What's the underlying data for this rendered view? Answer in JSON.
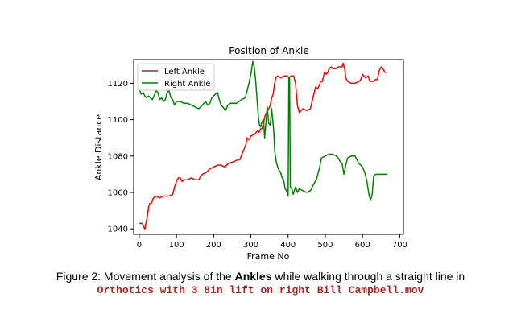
{
  "chart_data": {
    "type": "line",
    "title": "Position of Ankle",
    "xlabel": "Frame No",
    "ylabel": "Ankle Distance",
    "xlim": [
      -15,
      710
    ],
    "ylim": [
      1037,
      1133
    ],
    "xticks": [
      0,
      100,
      200,
      300,
      400,
      500,
      600,
      700
    ],
    "yticks": [
      1040,
      1060,
      1080,
      1100,
      1120
    ],
    "grid": false,
    "legend_position": "top-left",
    "series": [
      {
        "name": "Left Ankle",
        "color": "#ff0000",
        "points": [
          [
            0,
            1043
          ],
          [
            8,
            1043
          ],
          [
            12,
            1041
          ],
          [
            15,
            1040
          ],
          [
            18,
            1043
          ],
          [
            22,
            1047
          ],
          [
            25,
            1052
          ],
          [
            28,
            1054
          ],
          [
            32,
            1054
          ],
          [
            38,
            1057
          ],
          [
            45,
            1058
          ],
          [
            55,
            1057
          ],
          [
            65,
            1058
          ],
          [
            80,
            1058
          ],
          [
            90,
            1059
          ],
          [
            95,
            1063
          ],
          [
            100,
            1066
          ],
          [
            105,
            1068
          ],
          [
            110,
            1068
          ],
          [
            115,
            1066
          ],
          [
            120,
            1067
          ],
          [
            130,
            1067
          ],
          [
            140,
            1068
          ],
          [
            150,
            1067
          ],
          [
            160,
            1067
          ],
          [
            165,
            1069
          ],
          [
            170,
            1070
          ],
          [
            180,
            1071
          ],
          [
            190,
            1073
          ],
          [
            200,
            1074
          ],
          [
            210,
            1075
          ],
          [
            220,
            1075
          ],
          [
            230,
            1074
          ],
          [
            240,
            1076
          ],
          [
            255,
            1077
          ],
          [
            265,
            1078
          ],
          [
            270,
            1078
          ],
          [
            278,
            1082
          ],
          [
            282,
            1084
          ],
          [
            286,
            1086
          ],
          [
            290,
            1090
          ],
          [
            295,
            1089
          ],
          [
            300,
            1091
          ],
          [
            310,
            1092
          ],
          [
            318,
            1094
          ],
          [
            322,
            1093
          ],
          [
            326,
            1095
          ],
          [
            330,
            1095
          ],
          [
            335,
            1099
          ],
          [
            338,
            1102
          ],
          [
            342,
            1104
          ],
          [
            348,
            1106
          ],
          [
            352,
            1108
          ],
          [
            356,
            1112
          ],
          [
            360,
            1114
          ],
          [
            363,
            1119
          ],
          [
            367,
            1123
          ],
          [
            372,
            1124
          ],
          [
            380,
            1123
          ],
          [
            390,
            1124
          ],
          [
            398,
            1124
          ],
          [
            402,
            1123
          ],
          [
            408,
            1124
          ],
          [
            415,
            1124
          ],
          [
            420,
            1120
          ],
          [
            425,
            1108
          ],
          [
            430,
            1104
          ],
          [
            440,
            1106
          ],
          [
            450,
            1105
          ],
          [
            460,
            1106
          ],
          [
            468,
            1113
          ],
          [
            474,
            1118
          ],
          [
            480,
            1117
          ],
          [
            488,
            1121
          ],
          [
            492,
            1121
          ],
          [
            498,
            1126
          ],
          [
            503,
            1125
          ],
          [
            507,
            1126
          ],
          [
            510,
            1128
          ],
          [
            516,
            1129
          ],
          [
            520,
            1128
          ],
          [
            528,
            1128
          ],
          [
            535,
            1129
          ],
          [
            545,
            1129
          ],
          [
            548,
            1131
          ],
          [
            552,
            1128
          ],
          [
            555,
            1123
          ],
          [
            560,
            1121
          ],
          [
            570,
            1120
          ],
          [
            580,
            1120
          ],
          [
            590,
            1121
          ],
          [
            595,
            1122
          ],
          [
            600,
            1125
          ],
          [
            608,
            1123
          ],
          [
            615,
            1124
          ],
          [
            620,
            1121
          ],
          [
            628,
            1121
          ],
          [
            635,
            1122
          ],
          [
            640,
            1122
          ],
          [
            645,
            1127
          ],
          [
            650,
            1129
          ],
          [
            655,
            1128
          ],
          [
            660,
            1126
          ],
          [
            665,
            1126
          ]
        ]
      },
      {
        "name": "Right Ankle",
        "color": "#008000",
        "points": [
          [
            0,
            1117
          ],
          [
            5,
            1114
          ],
          [
            10,
            1115
          ],
          [
            15,
            1113
          ],
          [
            20,
            1112
          ],
          [
            25,
            1113
          ],
          [
            30,
            1112
          ],
          [
            35,
            1111
          ],
          [
            40,
            1113
          ],
          [
            45,
            1116
          ],
          [
            50,
            1115
          ],
          [
            55,
            1111
          ],
          [
            60,
            1112
          ],
          [
            65,
            1110
          ],
          [
            70,
            1111
          ],
          [
            75,
            1115
          ],
          [
            80,
            1116
          ],
          [
            85,
            1112
          ],
          [
            90,
            1111
          ],
          [
            95,
            1108
          ],
          [
            100,
            1110
          ],
          [
            110,
            1110
          ],
          [
            120,
            1109
          ],
          [
            130,
            1109
          ],
          [
            140,
            1108
          ],
          [
            150,
            1107
          ],
          [
            160,
            1106
          ],
          [
            170,
            1108
          ],
          [
            178,
            1110
          ],
          [
            184,
            1108
          ],
          [
            190,
            1109
          ],
          [
            195,
            1112
          ],
          [
            200,
            1113
          ],
          [
            205,
            1114
          ],
          [
            210,
            1115
          ],
          [
            215,
            1111
          ],
          [
            220,
            1108
          ],
          [
            225,
            1107
          ],
          [
            232,
            1105
          ],
          [
            238,
            1108
          ],
          [
            245,
            1109
          ],
          [
            255,
            1109
          ],
          [
            262,
            1109
          ],
          [
            268,
            1110
          ],
          [
            275,
            1111
          ],
          [
            285,
            1112
          ],
          [
            290,
            1116
          ],
          [
            295,
            1120
          ],
          [
            300,
            1125
          ],
          [
            305,
            1132
          ],
          [
            309,
            1129
          ],
          [
            313,
            1121
          ],
          [
            317,
            1110
          ],
          [
            320,
            1102
          ],
          [
            323,
            1097
          ],
          [
            326,
            1096
          ],
          [
            330,
            1099
          ],
          [
            334,
            1100
          ],
          [
            337,
            1090
          ],
          [
            340,
            1097
          ],
          [
            344,
            1107
          ],
          [
            348,
            1098
          ],
          [
            352,
            1097
          ],
          [
            356,
            1106
          ],
          [
            360,
            1097
          ],
          [
            362,
            1092
          ],
          [
            364,
            1083
          ],
          [
            368,
            1077
          ],
          [
            372,
            1074
          ],
          [
            376,
            1072
          ],
          [
            380,
            1071
          ],
          [
            384,
            1068
          ],
          [
            388,
            1067
          ],
          [
            392,
            1062
          ],
          [
            396,
            1061
          ],
          [
            400,
            1058
          ],
          [
            402,
            1123
          ],
          [
            404,
            1123
          ],
          [
            406,
            1063
          ],
          [
            410,
            1062
          ],
          [
            414,
            1059
          ],
          [
            420,
            1063
          ],
          [
            425,
            1060
          ],
          [
            430,
            1062
          ],
          [
            440,
            1061
          ],
          [
            450,
            1060
          ],
          [
            460,
            1061
          ],
          [
            470,
            1065
          ],
          [
            476,
            1067
          ],
          [
            480,
            1070
          ],
          [
            485,
            1074
          ],
          [
            490,
            1079
          ],
          [
            500,
            1080
          ],
          [
            510,
            1081
          ],
          [
            520,
            1081
          ],
          [
            530,
            1080
          ],
          [
            535,
            1079
          ],
          [
            540,
            1077
          ],
          [
            545,
            1076
          ],
          [
            550,
            1070
          ],
          [
            555,
            1075
          ],
          [
            560,
            1079
          ],
          [
            570,
            1080
          ],
          [
            580,
            1080
          ],
          [
            590,
            1076
          ],
          [
            600,
            1074
          ],
          [
            606,
            1071
          ],
          [
            612,
            1066
          ],
          [
            615,
            1062
          ],
          [
            618,
            1058
          ],
          [
            622,
            1056
          ],
          [
            626,
            1059
          ],
          [
            630,
            1069
          ],
          [
            636,
            1070
          ],
          [
            640,
            1070
          ],
          [
            650,
            1070
          ],
          [
            660,
            1070
          ],
          [
            667,
            1070
          ]
        ]
      }
    ]
  },
  "caption": {
    "prefix": "Figure 2:  Movement analysis of the ",
    "bold": "Ankles",
    "suffix": " while walking through a straight line in",
    "filename": "Orthotics with 3 8in lift on right Bill Campbell.mov"
  }
}
